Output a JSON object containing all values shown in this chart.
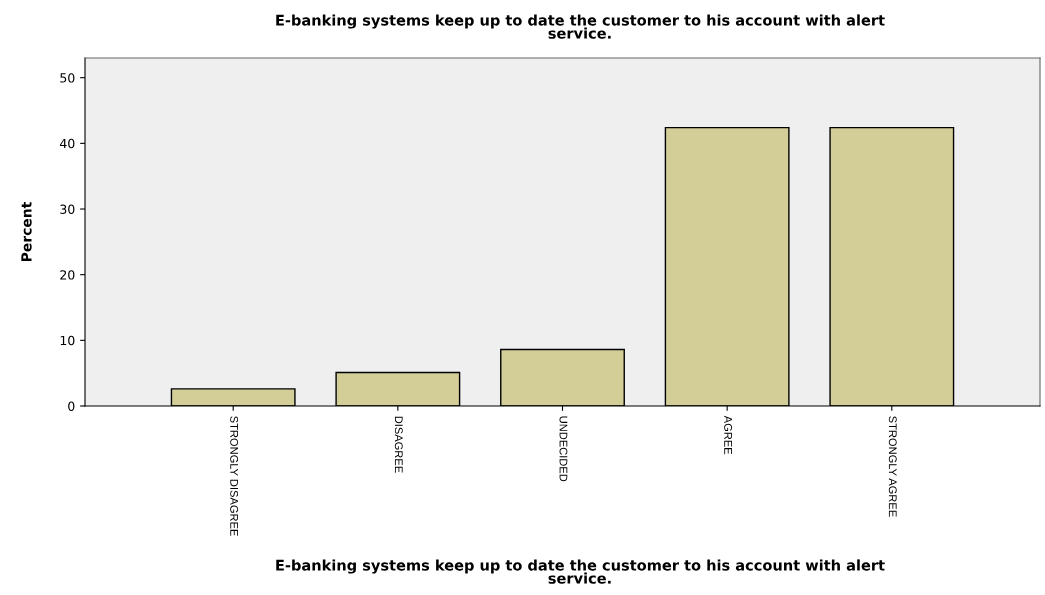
{
  "chart_data": {
    "type": "bar",
    "title": "E-banking systems keep up to date the customer to his account with alert\nservice.",
    "xlabel": "E-banking systems keep up to date the customer to his account with alert\nservice.",
    "ylabel": "Percent",
    "categories": [
      "STRONGLY DISAGREE",
      "DISAGREE",
      "UNDECIDED",
      "AGREE",
      "STRONGLY AGREE"
    ],
    "values": [
      2.6,
      5.1,
      8.6,
      42.4,
      42.4
    ],
    "color": "#d3ce97",
    "ylim": [
      0,
      53
    ],
    "yticks": [
      0,
      10,
      20,
      30,
      40,
      50
    ],
    "grid": false,
    "legend": false
  }
}
